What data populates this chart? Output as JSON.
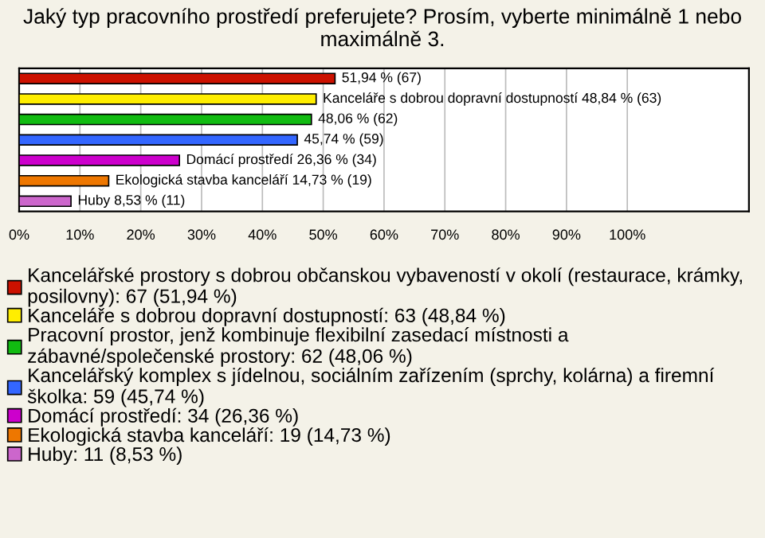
{
  "chart_data": {
    "type": "bar",
    "orientation": "horizontal",
    "title": "Jaký typ pracovního prostředí preferujete? Prosím, vyberte minimálně 1 nebo maximálně 3.",
    "categories": [
      null,
      null,
      null,
      null,
      null,
      null,
      null
    ],
    "series": [
      {
        "name": "Kancelářské prostory s dobrou občanskou vybaveností v okolí (restaurace, krámky, posilovny): 67 (51,94 %)",
        "color": "#cc1100",
        "values": [
          51.94,
          null,
          null,
          null,
          null,
          null,
          null
        ],
        "value_labels": [
          "51,94 % (67)",
          null,
          null,
          null,
          null,
          null,
          null
        ]
      },
      {
        "name": "Kanceláře s dobrou dopravní dostupností: 63 (48,84 %)",
        "color": "#ffee00",
        "values": [
          null,
          48.84,
          null,
          null,
          null,
          null,
          null
        ],
        "value_labels": [
          null,
          "Kanceláře s dobrou dopravní dostupností 48,84 % (63)",
          null,
          null,
          null,
          null,
          null
        ]
      },
      {
        "name": "Pracovní prostor, jenž kombinuje flexibilní zasedací místnosti a zábavné/společenské prostory: 62 (48,06 %)",
        "color": "#11bb11",
        "values": [
          null,
          null,
          48.06,
          null,
          null,
          null,
          null
        ],
        "value_labels": [
          null,
          null,
          "48,06 % (62)",
          null,
          null,
          null,
          null
        ]
      },
      {
        "name": "Kancelářský komplex s jídelnou, sociálním zařízením (sprchy, kolárna) a firemní školka: 59 (45,74 %)",
        "color": "#3366ff",
        "values": [
          null,
          null,
          null,
          45.74,
          null,
          null,
          null
        ],
        "value_labels": [
          null,
          null,
          null,
          "45,74 % (59)",
          null,
          null,
          null
        ]
      },
      {
        "name": "Domácí prostředí: 34 (26,36 %)",
        "color": "#cc00cc",
        "values": [
          null,
          null,
          null,
          null,
          26.36,
          null,
          null
        ],
        "value_labels": [
          null,
          null,
          null,
          null,
          "Domácí prostředí 26,36 % (34)",
          null,
          null
        ]
      },
      {
        "name": "Ekologická stavba kanceláří: 19 (14,73 %)",
        "color": "#ee7700",
        "values": [
          null,
          null,
          null,
          null,
          null,
          14.73,
          null
        ],
        "value_labels": [
          null,
          null,
          null,
          null,
          null,
          "Ekologická stavba kanceláří 14,73 % (19)",
          null
        ]
      },
      {
        "name": "Huby: 11 (8,53 %)",
        "color": "#cc66cc",
        "values": [
          null,
          null,
          null,
          null,
          null,
          null,
          8.53
        ],
        "value_labels": [
          null,
          null,
          null,
          null,
          null,
          null,
          "Huby 8,53 % (11)"
        ]
      }
    ],
    "xlim": [
      0,
      120
    ],
    "xticks": [
      {
        "value": 0,
        "label": "0%"
      },
      {
        "value": 10,
        "label": "10%"
      },
      {
        "value": 20,
        "label": "20%"
      },
      {
        "value": 30,
        "label": "30%"
      },
      {
        "value": 40,
        "label": "40%"
      },
      {
        "value": 50,
        "label": "50%"
      },
      {
        "value": 60,
        "label": "60%"
      },
      {
        "value": 70,
        "label": "70%"
      },
      {
        "value": 80,
        "label": "80%"
      },
      {
        "value": 90,
        "label": "90%"
      },
      {
        "value": 100,
        "label": "100%"
      }
    ],
    "grid": "x",
    "legend": "bottom",
    "tick_labels": "x"
  }
}
